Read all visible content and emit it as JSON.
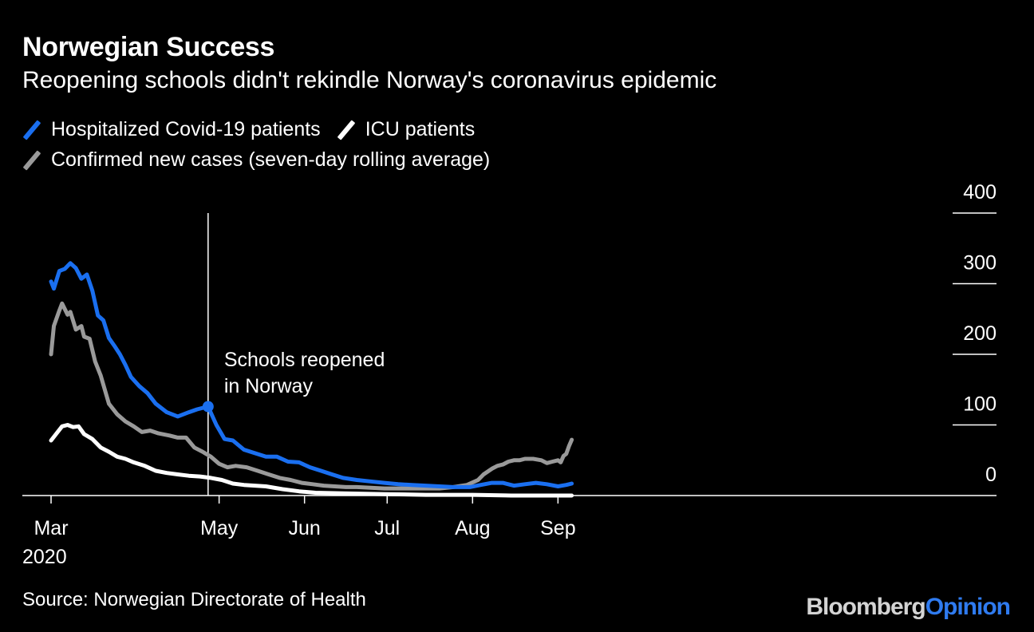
{
  "header": {
    "title": "Norwegian Success",
    "subtitle": "Reopening schools didn't rekindle Norway's coronavirus epidemic"
  },
  "legend": [
    {
      "label": "Hospitalized Covid-19 patients",
      "color": "#1a6ff0"
    },
    {
      "label": "ICU patients",
      "color": "#ffffff"
    },
    {
      "label": "Confirmed new cases (seven-day rolling average)",
      "color": "#9a9a9a"
    }
  ],
  "footer": {
    "source": "Source: Norwegian Directorate of Health",
    "logo_bloomberg": "Bloomberg",
    "logo_opinion": "Opinion"
  },
  "chart_data": {
    "type": "line",
    "title": "Norwegian Success",
    "subtitle": "Reopening schools didn't rekindle Norway's coronavirus epidemic",
    "y_ticks": [
      0,
      100,
      200,
      300,
      400
    ],
    "ylim": [
      0,
      400
    ],
    "x_ticks": [
      {
        "label": "Mar",
        "date": "2020-03-01"
      },
      {
        "label": "May",
        "date": "2020-05-01"
      },
      {
        "label": "Jun",
        "date": "2020-06-01"
      },
      {
        "label": "Jul",
        "date": "2020-07-01"
      },
      {
        "label": "Aug",
        "date": "2020-08-01"
      },
      {
        "label": "Sep",
        "date": "2020-09-01"
      }
    ],
    "x_year_label": "2020",
    "annotation": {
      "text_line1": "Schools reopened",
      "text_line2": "in Norway",
      "date": "2020-04-27",
      "marker_value": 126
    },
    "series": [
      {
        "name": "Hospitalized Covid-19 patients",
        "color": "#1a6ff0",
        "points": [
          [
            "2020-03-01",
            303
          ],
          [
            "2020-03-02",
            293
          ],
          [
            "2020-03-04",
            318
          ],
          [
            "2020-03-06",
            321
          ],
          [
            "2020-03-08",
            329
          ],
          [
            "2020-03-10",
            322
          ],
          [
            "2020-03-12",
            307
          ],
          [
            "2020-03-14",
            313
          ],
          [
            "2020-03-16",
            290
          ],
          [
            "2020-03-18",
            255
          ],
          [
            "2020-03-20",
            248
          ],
          [
            "2020-03-22",
            223
          ],
          [
            "2020-03-24",
            212
          ],
          [
            "2020-03-26",
            200
          ],
          [
            "2020-03-28",
            185
          ],
          [
            "2020-03-30",
            168
          ],
          [
            "2020-04-02",
            155
          ],
          [
            "2020-04-05",
            145
          ],
          [
            "2020-04-08",
            130
          ],
          [
            "2020-04-12",
            118
          ],
          [
            "2020-04-16",
            112
          ],
          [
            "2020-04-20",
            118
          ],
          [
            "2020-04-23",
            122
          ],
          [
            "2020-04-27",
            126
          ],
          [
            "2020-04-30",
            100
          ],
          [
            "2020-05-03",
            80
          ],
          [
            "2020-05-06",
            78
          ],
          [
            "2020-05-10",
            65
          ],
          [
            "2020-05-14",
            60
          ],
          [
            "2020-05-18",
            55
          ],
          [
            "2020-05-22",
            55
          ],
          [
            "2020-05-26",
            48
          ],
          [
            "2020-05-30",
            47
          ],
          [
            "2020-06-03",
            40
          ],
          [
            "2020-06-07",
            35
          ],
          [
            "2020-06-11",
            30
          ],
          [
            "2020-06-15",
            25
          ],
          [
            "2020-06-20",
            22
          ],
          [
            "2020-06-25",
            20
          ],
          [
            "2020-06-30",
            18
          ],
          [
            "2020-07-05",
            16
          ],
          [
            "2020-07-10",
            15
          ],
          [
            "2020-07-15",
            14
          ],
          [
            "2020-07-20",
            13
          ],
          [
            "2020-07-25",
            12
          ],
          [
            "2020-07-31",
            12
          ],
          [
            "2020-08-04",
            15
          ],
          [
            "2020-08-08",
            18
          ],
          [
            "2020-08-12",
            18
          ],
          [
            "2020-08-16",
            14
          ],
          [
            "2020-08-20",
            16
          ],
          [
            "2020-08-24",
            18
          ],
          [
            "2020-08-28",
            16
          ],
          [
            "2020-09-01",
            13
          ],
          [
            "2020-09-04",
            15
          ],
          [
            "2020-09-06",
            17
          ]
        ]
      },
      {
        "name": "ICU patients",
        "color": "#ffffff",
        "points": [
          [
            "2020-03-01",
            78
          ],
          [
            "2020-03-03",
            88
          ],
          [
            "2020-03-05",
            98
          ],
          [
            "2020-03-07",
            100
          ],
          [
            "2020-03-09",
            97
          ],
          [
            "2020-03-11",
            98
          ],
          [
            "2020-03-13",
            87
          ],
          [
            "2020-03-16",
            80
          ],
          [
            "2020-03-19",
            68
          ],
          [
            "2020-03-22",
            62
          ],
          [
            "2020-03-25",
            55
          ],
          [
            "2020-03-28",
            52
          ],
          [
            "2020-03-31",
            47
          ],
          [
            "2020-04-04",
            42
          ],
          [
            "2020-04-08",
            35
          ],
          [
            "2020-04-12",
            32
          ],
          [
            "2020-04-16",
            30
          ],
          [
            "2020-04-20",
            28
          ],
          [
            "2020-04-24",
            27
          ],
          [
            "2020-04-28",
            25
          ],
          [
            "2020-05-02",
            22
          ],
          [
            "2020-05-06",
            17
          ],
          [
            "2020-05-10",
            15
          ],
          [
            "2020-05-14",
            14
          ],
          [
            "2020-05-18",
            13
          ],
          [
            "2020-05-24",
            9
          ],
          [
            "2020-05-30",
            6
          ],
          [
            "2020-06-05",
            4
          ],
          [
            "2020-06-15",
            3
          ],
          [
            "2020-06-30",
            2
          ],
          [
            "2020-07-15",
            1
          ],
          [
            "2020-08-01",
            1
          ],
          [
            "2020-08-15",
            0
          ],
          [
            "2020-09-06",
            0
          ]
        ]
      },
      {
        "name": "Confirmed new cases (seven-day rolling average)",
        "color": "#9a9a9a",
        "points": [
          [
            "2020-03-01",
            200
          ],
          [
            "2020-03-02",
            240
          ],
          [
            "2020-03-04",
            262
          ],
          [
            "2020-03-05",
            272
          ],
          [
            "2020-03-07",
            256
          ],
          [
            "2020-03-08",
            260
          ],
          [
            "2020-03-10",
            235
          ],
          [
            "2020-03-12",
            240
          ],
          [
            "2020-03-13",
            225
          ],
          [
            "2020-03-15",
            222
          ],
          [
            "2020-03-17",
            190
          ],
          [
            "2020-03-19",
            170
          ],
          [
            "2020-03-22",
            130
          ],
          [
            "2020-03-25",
            115
          ],
          [
            "2020-03-28",
            105
          ],
          [
            "2020-03-31",
            98
          ],
          [
            "2020-04-03",
            90
          ],
          [
            "2020-04-06",
            92
          ],
          [
            "2020-04-09",
            88
          ],
          [
            "2020-04-13",
            85
          ],
          [
            "2020-04-16",
            82
          ],
          [
            "2020-04-19",
            82
          ],
          [
            "2020-04-22",
            68
          ],
          [
            "2020-04-25",
            62
          ],
          [
            "2020-04-28",
            55
          ],
          [
            "2020-05-01",
            45
          ],
          [
            "2020-05-04",
            40
          ],
          [
            "2020-05-07",
            42
          ],
          [
            "2020-05-11",
            40
          ],
          [
            "2020-05-15",
            35
          ],
          [
            "2020-05-19",
            30
          ],
          [
            "2020-05-23",
            25
          ],
          [
            "2020-05-27",
            22
          ],
          [
            "2020-05-31",
            18
          ],
          [
            "2020-06-04",
            16
          ],
          [
            "2020-06-08",
            14
          ],
          [
            "2020-06-12",
            13
          ],
          [
            "2020-06-16",
            12
          ],
          [
            "2020-06-20",
            12
          ],
          [
            "2020-06-25",
            11
          ],
          [
            "2020-06-30",
            10
          ],
          [
            "2020-07-05",
            10
          ],
          [
            "2020-07-10",
            10
          ],
          [
            "2020-07-15",
            10
          ],
          [
            "2020-07-20",
            10
          ],
          [
            "2020-07-25",
            12
          ],
          [
            "2020-07-30",
            15
          ],
          [
            "2020-08-03",
            22
          ],
          [
            "2020-08-05",
            30
          ],
          [
            "2020-08-08",
            38
          ],
          [
            "2020-08-10",
            42
          ],
          [
            "2020-08-12",
            44
          ],
          [
            "2020-08-14",
            48
          ],
          [
            "2020-08-16",
            50
          ],
          [
            "2020-08-18",
            50
          ],
          [
            "2020-08-20",
            52
          ],
          [
            "2020-08-23",
            52
          ],
          [
            "2020-08-26",
            50
          ],
          [
            "2020-08-28",
            46
          ],
          [
            "2020-08-30",
            48
          ],
          [
            "2020-09-01",
            50
          ],
          [
            "2020-09-02",
            47
          ],
          [
            "2020-09-03",
            56
          ],
          [
            "2020-09-04",
            59
          ],
          [
            "2020-09-05",
            70
          ],
          [
            "2020-09-06",
            79
          ]
        ]
      }
    ]
  }
}
